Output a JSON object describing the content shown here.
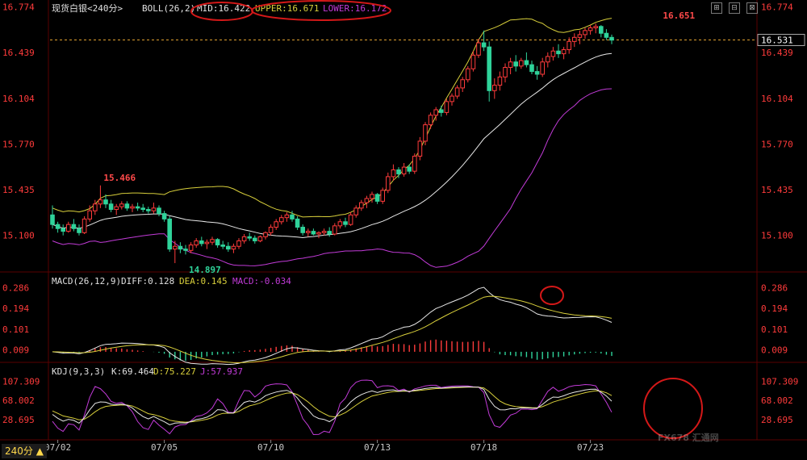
{
  "header": {
    "title": "现货白银<240分>",
    "boll_label": "BOLL(26,2)",
    "mid": "MID:16.422",
    "upper": "UPPER:16.671",
    "lower": "LOWER:16.172"
  },
  "macd_header": {
    "label": "MACD(26,12,9)",
    "diff": "DIFF:0.128",
    "dea": "DEA:0.145",
    "macd": "MACD:-0.034"
  },
  "kdj_header": {
    "label": "KDJ(9,3,3)",
    "k": "K:69.464",
    "d": "D:75.227",
    "j": "J:57.937"
  },
  "period_button": "240分 ▲",
  "watermark": "FX678 汇通网",
  "controls": [
    "⊞",
    "⊟",
    "⊠"
  ],
  "colors": {
    "up": "#ff3b3b",
    "down": "#2fd39a",
    "mid": "#e8e8e8",
    "upper": "#d8cf3b",
    "lower": "#c23bd8",
    "price_line": "#e0a030",
    "annotation": "#d41818"
  },
  "chart_data": [
    {
      "type": "candlestick",
      "title": "现货白银 240分 BOLL(26,2)",
      "y_ticks": [
        16.774,
        16.439,
        16.104,
        15.77,
        15.435,
        15.1
      ],
      "ylim": [
        14.85,
        16.8
      ],
      "x_ticks": [
        "07/02",
        "07/05",
        "07/10",
        "07/13",
        "07/18",
        "07/23"
      ],
      "x_tick_index": [
        1,
        21,
        41,
        61,
        81,
        101
      ],
      "last_price": 16.531,
      "annotations": [
        {
          "text": "15.466",
          "index": 9,
          "value": 15.466
        },
        {
          "text": "14.897",
          "index": 25,
          "value": 14.897
        },
        {
          "text": "16.651",
          "index": 114,
          "value": 16.651
        }
      ],
      "ohlc": [
        [
          15.25,
          15.32,
          15.15,
          15.18
        ],
        [
          15.18,
          15.2,
          15.12,
          15.15
        ],
        [
          15.15,
          15.18,
          15.1,
          15.13
        ],
        [
          15.13,
          15.2,
          15.12,
          15.18
        ],
        [
          15.18,
          15.22,
          15.13,
          15.15
        ],
        [
          15.15,
          15.18,
          15.1,
          15.12
        ],
        [
          15.12,
          15.24,
          15.11,
          15.22
        ],
        [
          15.22,
          15.32,
          15.2,
          15.28
        ],
        [
          15.28,
          15.36,
          15.25,
          15.33
        ],
        [
          15.33,
          15.466,
          15.3,
          15.36
        ],
        [
          15.36,
          15.4,
          15.3,
          15.33
        ],
        [
          15.33,
          15.36,
          15.27,
          15.29
        ],
        [
          15.29,
          15.33,
          15.25,
          15.31
        ],
        [
          15.31,
          15.35,
          15.29,
          15.33
        ],
        [
          15.33,
          15.35,
          15.28,
          15.3
        ],
        [
          15.3,
          15.33,
          15.27,
          15.31
        ],
        [
          15.31,
          15.34,
          15.28,
          15.3
        ],
        [
          15.3,
          15.33,
          15.27,
          15.29
        ],
        [
          15.29,
          15.31,
          15.26,
          15.28
        ],
        [
          15.28,
          15.34,
          15.26,
          15.3
        ],
        [
          15.3,
          15.32,
          15.24,
          15.26
        ],
        [
          15.26,
          15.28,
          15.2,
          15.22
        ],
        [
          15.22,
          15.24,
          14.98,
          15.0
        ],
        [
          15.0,
          15.06,
          14.897,
          15.02
        ],
        [
          15.02,
          15.05,
          14.97,
          15.0
        ],
        [
          15.0,
          15.03,
          14.96,
          14.99
        ],
        [
          14.99,
          15.05,
          14.97,
          15.03
        ],
        [
          15.03,
          15.08,
          15.01,
          15.06
        ],
        [
          15.06,
          15.09,
          15.02,
          15.04
        ],
        [
          15.04,
          15.07,
          15.0,
          15.05
        ],
        [
          15.05,
          15.09,
          15.03,
          15.07
        ],
        [
          15.07,
          15.08,
          15.01,
          15.03
        ],
        [
          15.03,
          15.06,
          15.0,
          15.02
        ],
        [
          15.02,
          15.05,
          14.98,
          15.0
        ],
        [
          15.0,
          15.04,
          14.97,
          15.02
        ],
        [
          15.02,
          15.08,
          15.0,
          15.06
        ],
        [
          15.06,
          15.11,
          15.04,
          15.09
        ],
        [
          15.09,
          15.12,
          15.06,
          15.08
        ],
        [
          15.08,
          15.1,
          15.04,
          15.06
        ],
        [
          15.06,
          15.1,
          15.05,
          15.09
        ],
        [
          15.09,
          15.13,
          15.07,
          15.12
        ],
        [
          15.12,
          15.18,
          15.1,
          15.16
        ],
        [
          15.16,
          15.22,
          15.14,
          15.2
        ],
        [
          15.2,
          15.25,
          15.18,
          15.23
        ],
        [
          15.23,
          15.27,
          15.2,
          15.25
        ],
        [
          15.25,
          15.28,
          15.2,
          15.22
        ],
        [
          15.22,
          15.24,
          15.14,
          15.16
        ],
        [
          15.16,
          15.18,
          15.1,
          15.12
        ],
        [
          15.12,
          15.15,
          15.09,
          15.13
        ],
        [
          15.13,
          15.15,
          15.1,
          15.11
        ],
        [
          15.11,
          15.13,
          15.08,
          15.12
        ],
        [
          15.12,
          15.15,
          15.1,
          15.13
        ],
        [
          15.13,
          15.16,
          15.09,
          15.11
        ],
        [
          15.11,
          15.19,
          15.1,
          15.17
        ],
        [
          15.17,
          15.22,
          15.15,
          15.2
        ],
        [
          15.2,
          15.23,
          15.16,
          15.18
        ],
        [
          15.18,
          15.27,
          15.17,
          15.25
        ],
        [
          15.25,
          15.32,
          15.23,
          15.3
        ],
        [
          15.3,
          15.36,
          15.28,
          15.34
        ],
        [
          15.34,
          15.39,
          15.3,
          15.37
        ],
        [
          15.37,
          15.42,
          15.34,
          15.4
        ],
        [
          15.4,
          15.41,
          15.33,
          15.35
        ],
        [
          15.35,
          15.45,
          15.33,
          15.43
        ],
        [
          15.43,
          15.56,
          15.41,
          15.53
        ],
        [
          15.53,
          15.62,
          15.5,
          15.58
        ],
        [
          15.58,
          15.6,
          15.52,
          15.55
        ],
        [
          15.55,
          15.63,
          15.53,
          15.6
        ],
        [
          15.6,
          15.62,
          15.55,
          15.57
        ],
        [
          15.57,
          15.7,
          15.55,
          15.68
        ],
        [
          15.68,
          15.82,
          15.65,
          15.79
        ],
        [
          15.79,
          15.93,
          15.76,
          15.91
        ],
        [
          15.91,
          16.0,
          15.88,
          15.98
        ],
        [
          15.98,
          16.04,
          15.94,
          16.02
        ],
        [
          16.02,
          16.05,
          15.97,
          16.0
        ],
        [
          16.0,
          16.1,
          15.98,
          16.08
        ],
        [
          16.08,
          16.14,
          16.05,
          16.12
        ],
        [
          16.12,
          16.2,
          16.1,
          16.18
        ],
        [
          16.18,
          16.26,
          16.15,
          16.24
        ],
        [
          16.24,
          16.34,
          16.22,
          16.32
        ],
        [
          16.32,
          16.45,
          16.3,
          16.42
        ],
        [
          16.42,
          16.54,
          16.4,
          16.51
        ],
        [
          16.51,
          16.6,
          16.45,
          16.48
        ],
        [
          16.48,
          16.52,
          16.08,
          16.16
        ],
        [
          16.16,
          16.25,
          16.1,
          16.2
        ],
        [
          16.2,
          16.3,
          16.16,
          16.26
        ],
        [
          16.26,
          16.36,
          16.22,
          16.33
        ],
        [
          16.33,
          16.4,
          16.28,
          16.37
        ],
        [
          16.37,
          16.42,
          16.3,
          16.34
        ],
        [
          16.34,
          16.4,
          16.32,
          16.38
        ],
        [
          16.38,
          16.44,
          16.33,
          16.35
        ],
        [
          16.35,
          16.38,
          16.28,
          16.3
        ],
        [
          16.3,
          16.34,
          16.24,
          16.28
        ],
        [
          16.28,
          16.4,
          16.26,
          16.37
        ],
        [
          16.37,
          16.44,
          16.33,
          16.41
        ],
        [
          16.41,
          16.48,
          16.38,
          16.45
        ],
        [
          16.45,
          16.5,
          16.4,
          16.43
        ],
        [
          16.43,
          16.48,
          16.39,
          16.46
        ],
        [
          16.46,
          16.55,
          16.43,
          16.52
        ],
        [
          16.52,
          16.58,
          16.48,
          16.55
        ],
        [
          16.55,
          16.6,
          16.5,
          16.57
        ],
        [
          16.57,
          16.62,
          16.54,
          16.6
        ],
        [
          16.6,
          16.64,
          16.57,
          16.62
        ],
        [
          16.62,
          16.651,
          16.58,
          16.63
        ],
        [
          16.63,
          16.64,
          16.55,
          16.58
        ],
        [
          16.58,
          16.61,
          16.53,
          16.55
        ],
        [
          16.55,
          16.57,
          16.5,
          16.53
        ]
      ],
      "boll": {
        "period": 26,
        "k": 2,
        "mid_last": 16.422,
        "upper_last": 16.671,
        "lower_last": 16.172
      }
    },
    {
      "type": "macd",
      "title": "MACD(26,12,9)",
      "y_ticks": [
        0.286,
        0.194,
        0.101,
        0.009
      ],
      "ylim": [
        -0.04,
        0.31
      ],
      "series": [
        {
          "name": "DIFF",
          "last": 0.128
        },
        {
          "name": "DEA",
          "last": 0.145
        },
        {
          "name": "MACD",
          "last": -0.034
        }
      ]
    },
    {
      "type": "kdj",
      "title": "KDJ(9,3,3)",
      "y_ticks": [
        107.309,
        68.002,
        28.695
      ],
      "ylim": [
        -10,
        125
      ],
      "series": [
        {
          "name": "K",
          "last": 69.464
        },
        {
          "name": "D",
          "last": 75.227
        },
        {
          "name": "J",
          "last": 57.937
        }
      ]
    }
  ]
}
